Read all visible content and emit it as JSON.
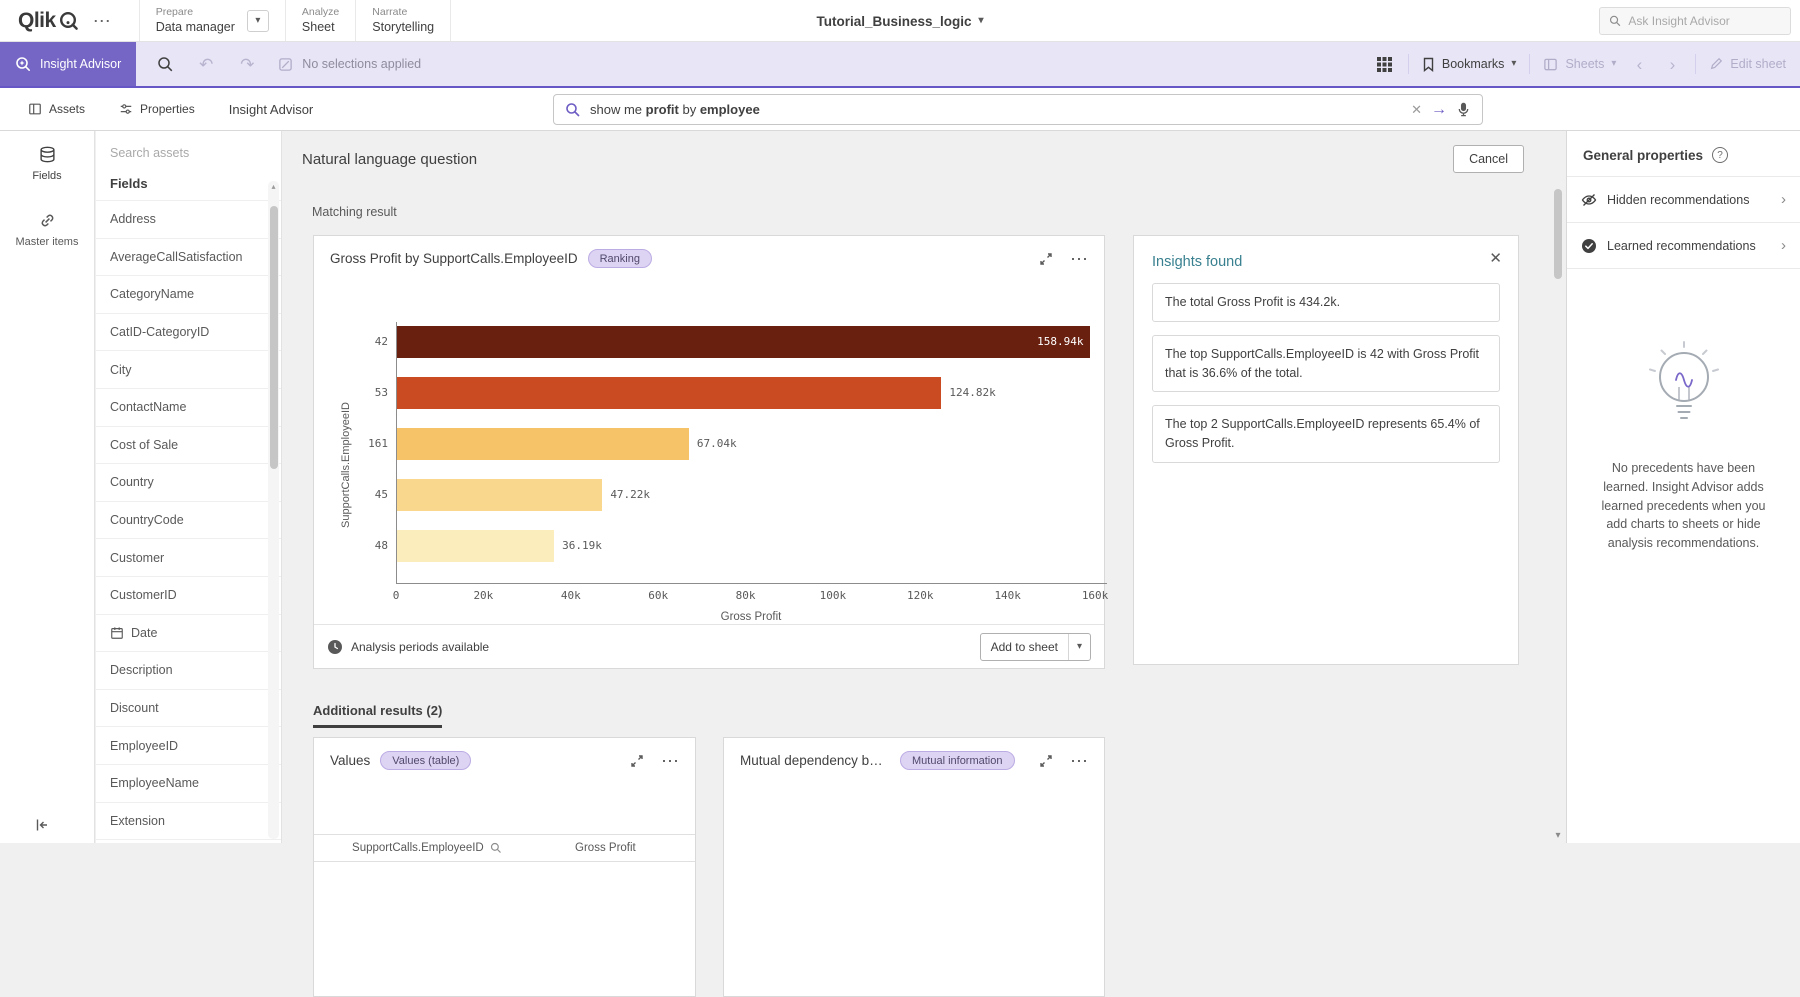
{
  "icons": {
    "dots": "⋯",
    "caret": "▾",
    "close": "✕",
    "arrow_submit": "→",
    "undo": "↶",
    "redo": "↷",
    "chevron_left": "‹",
    "chevron_right": "›",
    "scroll_up": "▴",
    "scroll_down": "▾",
    "question": "?"
  },
  "topbar": {
    "logo": "Qlik",
    "nav": [
      {
        "section": "Prepare",
        "label": "Data manager"
      },
      {
        "section": "Analyze",
        "label": "Sheet"
      },
      {
        "section": "Narrate",
        "label": "Storytelling"
      }
    ],
    "app_title": "Tutorial_Business_logic",
    "ask_placeholder": "Ask Insight Advisor"
  },
  "selection_bar": {
    "insight_advisor": "Insight Advisor",
    "no_selections": "No selections applied",
    "bookmarks": "Bookmarks",
    "sheets": "Sheets",
    "edit_sheet": "Edit sheet"
  },
  "toolbar": {
    "assets": "Assets",
    "properties": "Properties",
    "title": "Insight Advisor",
    "query": {
      "pre": "show me ",
      "term1": "profit",
      "mid": " by ",
      "term2": "employee"
    }
  },
  "sidebar": {
    "search_placeholder": "Search assets",
    "rail": [
      {
        "label": "Fields"
      },
      {
        "label": "Master items"
      }
    ],
    "section_title": "Fields",
    "items": [
      {
        "label": "Address"
      },
      {
        "label": "AverageCallSatisfaction"
      },
      {
        "label": "CategoryName"
      },
      {
        "label": "CatID-CategoryID"
      },
      {
        "label": "City"
      },
      {
        "label": "ContactName"
      },
      {
        "label": "Cost of Sale"
      },
      {
        "label": "Country"
      },
      {
        "label": "CountryCode"
      },
      {
        "label": "Customer"
      },
      {
        "label": "CustomerID"
      },
      {
        "label": "Date",
        "icon": "calendar"
      },
      {
        "label": "Description"
      },
      {
        "label": "Discount"
      },
      {
        "label": "EmployeeID"
      },
      {
        "label": "EmployeeName"
      },
      {
        "label": "Extension"
      }
    ]
  },
  "main": {
    "header": "Natural language question",
    "cancel": "Cancel",
    "matching": "Matching result",
    "chart_card": {
      "title": "Gross Profit by SupportCalls.EmployeeID",
      "badge": "Ranking",
      "footer_note": "Analysis periods available",
      "add_to_sheet": "Add to sheet"
    },
    "insights": {
      "title": "Insights found",
      "items": [
        "The total Gross Profit is 434.2k.",
        "The top SupportCalls.EmployeeID is 42 with Gross Profit that is 36.6% of the total.",
        "The top 2 SupportCalls.EmployeeID represents 65.4% of Gross Profit."
      ]
    },
    "additional_tab": "Additional results (2)",
    "values_card": {
      "title": "Values",
      "badge": "Values (table)",
      "columns": [
        "SupportCalls.EmployeeID",
        "Gross Profit"
      ]
    },
    "mutual_card": {
      "title": "Mutual dependency bet...",
      "badge": "Mutual information"
    }
  },
  "properties_panel": {
    "title": "General properties",
    "rows": [
      {
        "label": "Hidden recommendations",
        "icon": "eye-slash"
      },
      {
        "label": "Learned recommendations",
        "icon": "check-circle"
      }
    ],
    "empty_text": "No precedents have been learned. Insight Advisor adds learned precedents when you add charts to sheets or hide analysis recommendations."
  },
  "chart_data": {
    "type": "bar",
    "orientation": "horizontal",
    "title": "Gross Profit by SupportCalls.EmployeeID",
    "categories": [
      "42",
      "53",
      "161",
      "45",
      "48"
    ],
    "values": [
      158940,
      124820,
      67040,
      47220,
      36190
    ],
    "value_labels": [
      "158.94k",
      "124.82k",
      "67.04k",
      "47.22k",
      "36.19k"
    ],
    "bar_colors": [
      "#69200f",
      "#ca4b21",
      "#f7c368",
      "#f9d88e",
      "#fcedbc"
    ],
    "label_inside": [
      true,
      false,
      false,
      false,
      false
    ],
    "xlabel": "Gross Profit",
    "ylabel": "SupportCalls.EmployeeID",
    "xlim": [
      0,
      162500
    ],
    "xticks": [
      {
        "v": 0,
        "label": "0"
      },
      {
        "v": 20000,
        "label": "20k"
      },
      {
        "v": 40000,
        "label": "40k"
      },
      {
        "v": 60000,
        "label": "60k"
      },
      {
        "v": 80000,
        "label": "80k"
      },
      {
        "v": 100000,
        "label": "100k"
      },
      {
        "v": 120000,
        "label": "120k"
      },
      {
        "v": 140000,
        "label": "140k"
      },
      {
        "v": 160000,
        "label": "160k"
      }
    ],
    "grid": false,
    "legend": false
  }
}
